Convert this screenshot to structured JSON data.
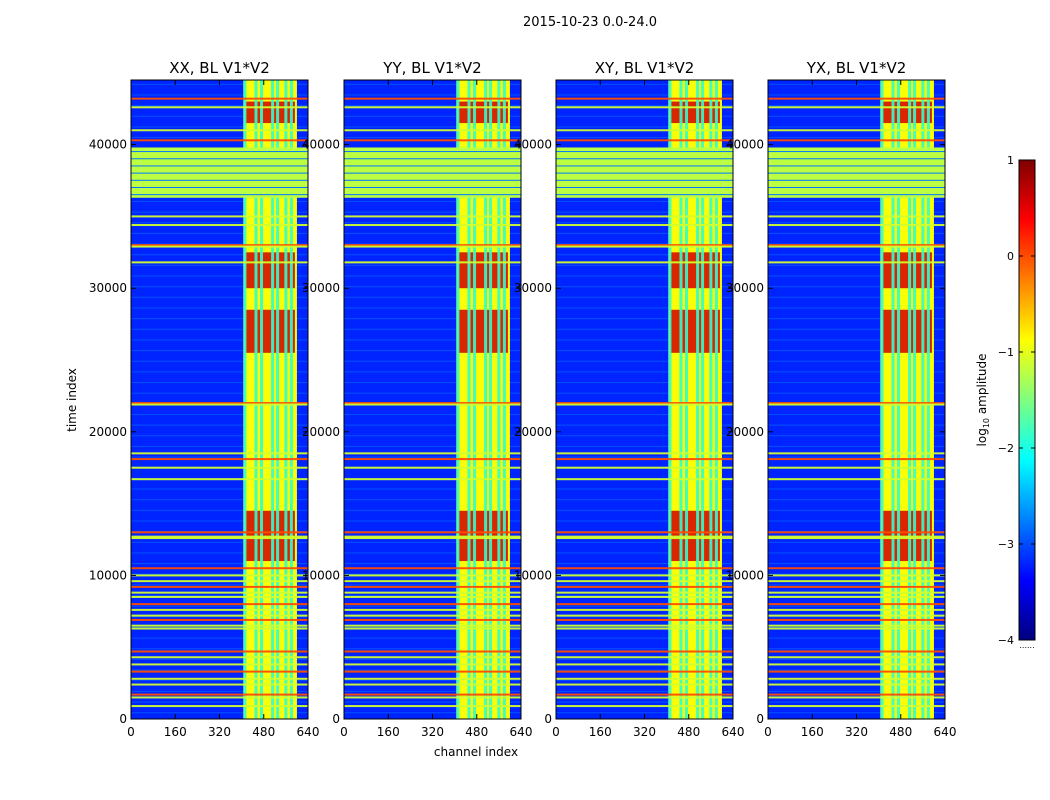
{
  "figure": {
    "suptitle": "2015-10-23 0.0-24.0",
    "xlabel": "channel index",
    "ylabel": "time index"
  },
  "colormap": {
    "name": "jet",
    "stops": [
      "#00007f",
      "#0000ff",
      "#007fff",
      "#00ffff",
      "#7fff7f",
      "#ffff00",
      "#ff7f00",
      "#ff0000",
      "#7f0000"
    ]
  },
  "chart_data": {
    "type": "heatmap",
    "x_range": [
      0,
      640
    ],
    "y_range": [
      0,
      44500
    ],
    "xticks": [
      0,
      160,
      320,
      480,
      640
    ],
    "yticks": [
      0,
      10000,
      20000,
      30000,
      40000
    ],
    "ytick_labels": [
      "0",
      "10000",
      "20000",
      "30000",
      "40000"
    ],
    "colorbar": {
      "label_prefix": "log",
      "label_sub": "10",
      "label_suffix": " amplitude",
      "range": [
        -4,
        1
      ],
      "ticks": [
        1,
        0,
        -1,
        -2,
        -3,
        -4
      ],
      "tick_labels": [
        "1",
        "0",
        "−1",
        "−2",
        "−3",
        "−4"
      ],
      "footer": "......"
    },
    "panels": [
      {
        "title": "XX, BL V1*V2",
        "show_ylabels": true
      },
      {
        "title": "YY, BL V1*V2",
        "show_ylabels": true
      },
      {
        "title": "XY, BL V1*V2",
        "show_ylabels": true
      },
      {
        "title": "YX, BL V1*V2",
        "show_ylabels": true
      }
    ],
    "features": {
      "background_log_amp": -3.2,
      "band_channels": [
        406,
        600
      ],
      "band_level": -0.9,
      "bright_channel_columns": [
        412,
        452,
        472,
        512,
        530,
        560,
        580
      ],
      "flagged_block_time": [
        36300,
        39800
      ],
      "flagged_level": -1.2,
      "flagged_lines_time": [
        40300,
        41000,
        42600,
        43200,
        35000,
        34400,
        33000,
        32900,
        31800,
        22000,
        21900,
        18500,
        18100,
        17500,
        16700,
        13000,
        12700,
        12600,
        10500,
        10000,
        9600,
        9200,
        8800,
        8500,
        8000,
        7600,
        7200,
        6900,
        6500,
        6300,
        4700,
        4300,
        3800,
        3300,
        2800,
        2400,
        1700,
        1500,
        900
      ],
      "hot_spans_time": [
        [
          41500,
          43000
        ],
        [
          30000,
          32500
        ],
        [
          25500,
          28500
        ],
        [
          11000,
          14500
        ]
      ],
      "hot_level": 0.6
    }
  }
}
